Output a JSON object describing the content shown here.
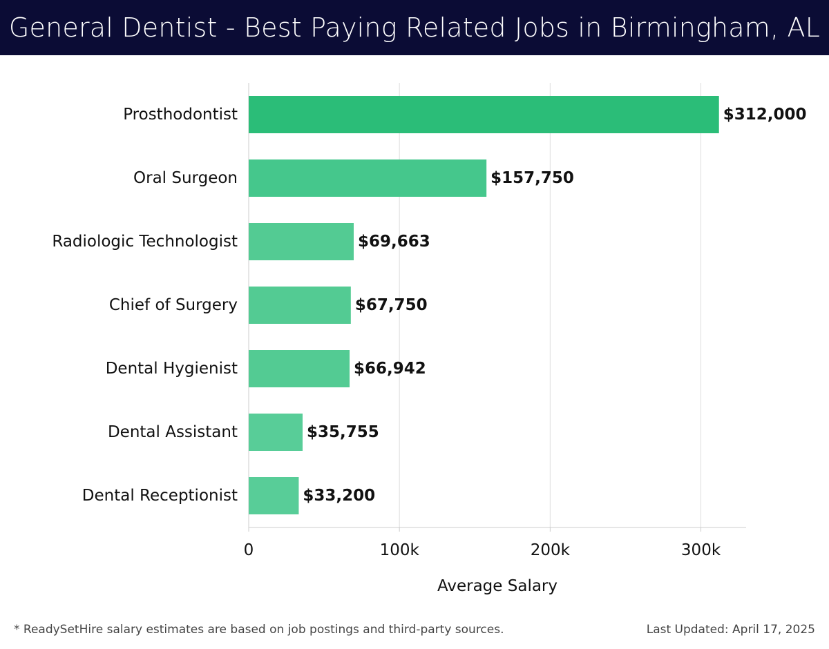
{
  "header": {
    "title": "General Dentist - Best Paying Related Jobs in Birmingham, AL"
  },
  "chart_data": {
    "type": "bar",
    "orientation": "horizontal",
    "title": "General Dentist - Best Paying Related Jobs in Birmingham, AL",
    "xlabel": "Average Salary",
    "ylabel": "",
    "categories": [
      "Prosthodontist",
      "Oral Surgeon",
      "Radiologic Technologist",
      "Chief of Surgery",
      "Dental Hygienist",
      "Dental Assistant",
      "Dental Receptionist"
    ],
    "values": [
      312000,
      157750,
      69663,
      67750,
      66942,
      35755,
      33200
    ],
    "value_labels": [
      "$312,000",
      "$157,750",
      "$69,663",
      "$67,750",
      "$66,942",
      "$35,755",
      "$33,200"
    ],
    "xlim": [
      0,
      330000
    ],
    "x_ticks": [
      0,
      100000,
      200000,
      300000
    ],
    "x_tick_labels": [
      "0",
      "100k",
      "200k",
      "300k"
    ],
    "grid": "vertical",
    "bar_colors": [
      "#2bbd78",
      "#45c78c",
      "#53cb93",
      "#53cb93",
      "#53cb93",
      "#58cd98",
      "#58cd98"
    ]
  },
  "footer": {
    "note": "* ReadySetHire salary estimates are based on job postings and third-party sources.",
    "updated": "Last Updated: April 17, 2025"
  }
}
